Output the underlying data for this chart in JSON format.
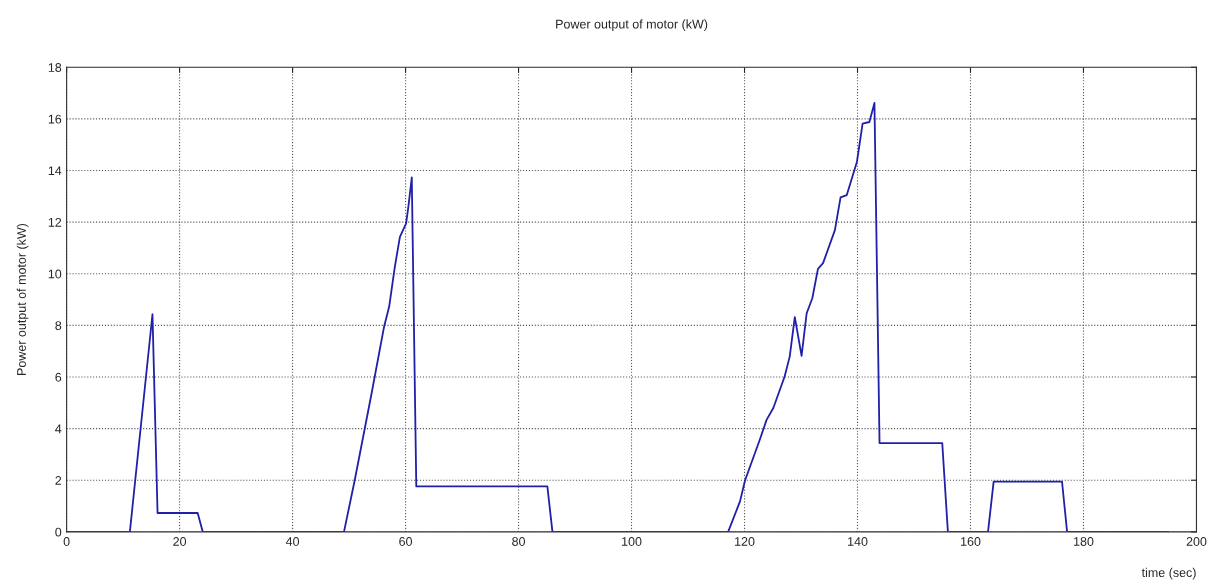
{
  "chart_data": {
    "type": "line",
    "title": "Power output of motor (kW)",
    "xlabel": "time (sec)",
    "ylabel": "Power output of motor (kW)",
    "xlim": [
      0,
      200
    ],
    "ylim": [
      0,
      18
    ],
    "xticks": [
      0,
      20,
      40,
      60,
      80,
      100,
      120,
      140,
      160,
      180,
      200
    ],
    "yticks": [
      0,
      2,
      4,
      6,
      8,
      10,
      12,
      14,
      16,
      18
    ],
    "grid": true,
    "line_style": "solid",
    "marker": "none",
    "series": [
      {
        "color": "#2020a8",
        "x": [
          0,
          11.2,
          15.2,
          16.1,
          23.2,
          24.1,
          49.1,
          51.0,
          54.0,
          56.2,
          57.1,
          58.1,
          59.0,
          60.1,
          60.5,
          61.1,
          61.9,
          85.1,
          86.0,
          117.1,
          119.2,
          120.1,
          122.7,
          123.9,
          125.1,
          127.1,
          128.0,
          128.9,
          130.1,
          131.0,
          132.0,
          133.0,
          133.9,
          136.0,
          137.0,
          138.1,
          139.9,
          140.9,
          142.1,
          143.0,
          143.9,
          155.0,
          156.0,
          163.1,
          164.1,
          176.2,
          177.1,
          195.0
        ],
        "values": [
          0,
          0,
          8.43,
          0.73,
          0.73,
          0,
          0,
          2.0,
          5.38,
          7.95,
          8.73,
          10.27,
          11.43,
          11.95,
          12.6,
          13.73,
          1.76,
          1.76,
          0,
          0,
          1.18,
          2.0,
          3.57,
          4.34,
          4.8,
          6.02,
          6.79,
          8.32,
          6.82,
          8.47,
          9.05,
          10.19,
          10.41,
          11.69,
          12.96,
          13.05,
          14.34,
          15.82,
          15.88,
          16.62,
          3.44,
          3.44,
          0,
          0,
          1.95,
          1.95,
          0,
          0
        ]
      }
    ]
  }
}
